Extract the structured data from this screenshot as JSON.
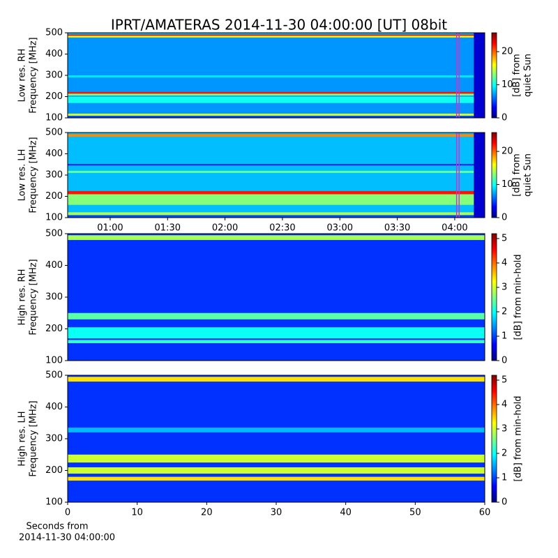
{
  "chart_data": [
    {
      "type": "heatmap",
      "title": "IPRT/AMATERAS 2014-11-30 04:00:00 [UT]   08bit",
      "ylabel": [
        "Low res. RH",
        "Frequency [MHz]"
      ],
      "xlim": [
        37.8,
        255.7
      ],
      "ylim": [
        100,
        500
      ],
      "yticks": [
        100,
        200,
        300,
        400,
        500
      ],
      "background_level": 7,
      "data_end": 250,
      "end_level": 2,
      "bands": [
        {
          "from": 100,
          "to": 110,
          "level": 5
        },
        {
          "from": 110,
          "to": 120,
          "level": 15
        },
        {
          "from": 170,
          "to": 200,
          "level": 10
        },
        {
          "from": 205,
          "to": 214,
          "level": 13
        },
        {
          "from": 214,
          "to": 222,
          "level": 22
        },
        {
          "from": 290,
          "to": 300,
          "level": 9
        },
        {
          "from": 478,
          "to": 486,
          "level": 16
        },
        {
          "from": 486,
          "to": 492,
          "level": 22
        },
        {
          "from": 492,
          "to": 500,
          "level": 8
        }
      ],
      "markers": [
        {
          "x": 241,
          "color": "#cc33cc"
        },
        {
          "x": 242.3,
          "color": "#cc33cc"
        }
      ],
      "colorbar": {
        "label": [
          "[dB] from",
          "quiet Sun"
        ],
        "lim": [
          0,
          25.7
        ],
        "ticks": [
          0,
          10,
          20
        ]
      }
    },
    {
      "type": "heatmap",
      "ylabel": [
        "Low res. LH",
        "Frequency [MHz]"
      ],
      "xlim": [
        37.8,
        255.7
      ],
      "ylim": [
        100,
        500
      ],
      "yticks": [
        100,
        200,
        300,
        400,
        500
      ],
      "xticks": [
        {
          "value": 60,
          "label": "01:00"
        },
        {
          "value": 90,
          "label": "01:30"
        },
        {
          "value": 120,
          "label": "02:00"
        },
        {
          "value": 150,
          "label": "02:30"
        },
        {
          "value": 180,
          "label": "03:00"
        },
        {
          "value": 210,
          "label": "03:30"
        },
        {
          "value": 240,
          "label": "04:00"
        }
      ],
      "background_level": 8,
      "data_end": 250,
      "end_level": 2,
      "bands": [
        {
          "from": 100,
          "to": 112,
          "level": 5
        },
        {
          "from": 112,
          "to": 125,
          "level": 14
        },
        {
          "from": 160,
          "to": 210,
          "level": 13
        },
        {
          "from": 210,
          "to": 225,
          "level": 22
        },
        {
          "from": 310,
          "to": 320,
          "level": 12
        },
        {
          "from": 345,
          "to": 352,
          "level": 4
        },
        {
          "from": 480,
          "to": 492,
          "level": 19
        }
      ],
      "markers": [
        {
          "x": 241,
          "color": "#cc33cc"
        },
        {
          "x": 242.3,
          "color": "#cc33cc"
        }
      ],
      "colorbar": {
        "label": [
          "[dB] from",
          "quiet Sun"
        ],
        "lim": [
          0,
          25.7
        ],
        "ticks": [
          0,
          10,
          20
        ]
      }
    },
    {
      "type": "heatmap",
      "ylabel": [
        "High res. RH",
        "Frequency [MHz]"
      ],
      "xlim": [
        0,
        60
      ],
      "ylim": [
        100,
        500
      ],
      "yticks": [
        100,
        200,
        300,
        400,
        500
      ],
      "background_level": 0.9,
      "bands": [
        {
          "from": 155,
          "to": 165,
          "level": 2.2
        },
        {
          "from": 170,
          "to": 205,
          "level": 2
        },
        {
          "from": 230,
          "to": 250,
          "level": 2.4
        },
        {
          "from": 480,
          "to": 495,
          "level": 2.8
        }
      ],
      "colorbar": {
        "label": [
          "[dB] from min-hold"
        ],
        "lim": [
          0,
          5.2
        ],
        "ticks": [
          0,
          1,
          2,
          3,
          4,
          5
        ]
      }
    },
    {
      "type": "heatmap",
      "ylabel": [
        "High res. LH",
        "Frequency [MHz]"
      ],
      "xlabel": [
        "Seconds from",
        "2014-11-30 04:00:00"
      ],
      "xlim": [
        0,
        60
      ],
      "ylim": [
        100,
        500
      ],
      "yticks": [
        100,
        200,
        300,
        400,
        500
      ],
      "xticks": [
        0,
        10,
        20,
        30,
        40,
        50,
        60
      ],
      "background_level": 0.9,
      "bands": [
        {
          "from": 168,
          "to": 180,
          "level": 3.4
        },
        {
          "from": 190,
          "to": 210,
          "level": 3
        },
        {
          "from": 225,
          "to": 250,
          "level": 3
        },
        {
          "from": 320,
          "to": 335,
          "level": 1.6
        },
        {
          "from": 480,
          "to": 495,
          "level": 3.4
        }
      ],
      "colorbar": {
        "label": [
          "[dB] from min-hold"
        ],
        "lim": [
          0,
          5.2
        ],
        "ticks": [
          0,
          1,
          2,
          3,
          4,
          5
        ]
      }
    }
  ]
}
